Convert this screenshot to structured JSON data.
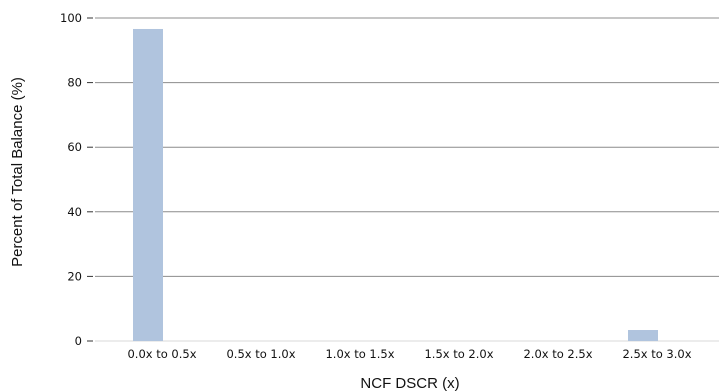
{
  "chart_data": {
    "type": "bar",
    "categories": [
      "0.0x to 0.5x",
      "0.5x to 1.0x",
      "1.0x to 1.5x",
      "1.5x to 2.0x",
      "2.0x to 2.5x",
      "2.5x to 3.0x"
    ],
    "values": [
      96.6,
      0,
      0,
      0,
      0,
      3.4
    ],
    "xlabel": "NCF DSCR (x)",
    "ylabel": "Percent of Total Balance (%)",
    "ylim": [
      0,
      100
    ],
    "yticks": [
      0,
      20,
      40,
      60,
      80,
      100
    ],
    "grid": true,
    "bar_color": "#b0c4de"
  }
}
